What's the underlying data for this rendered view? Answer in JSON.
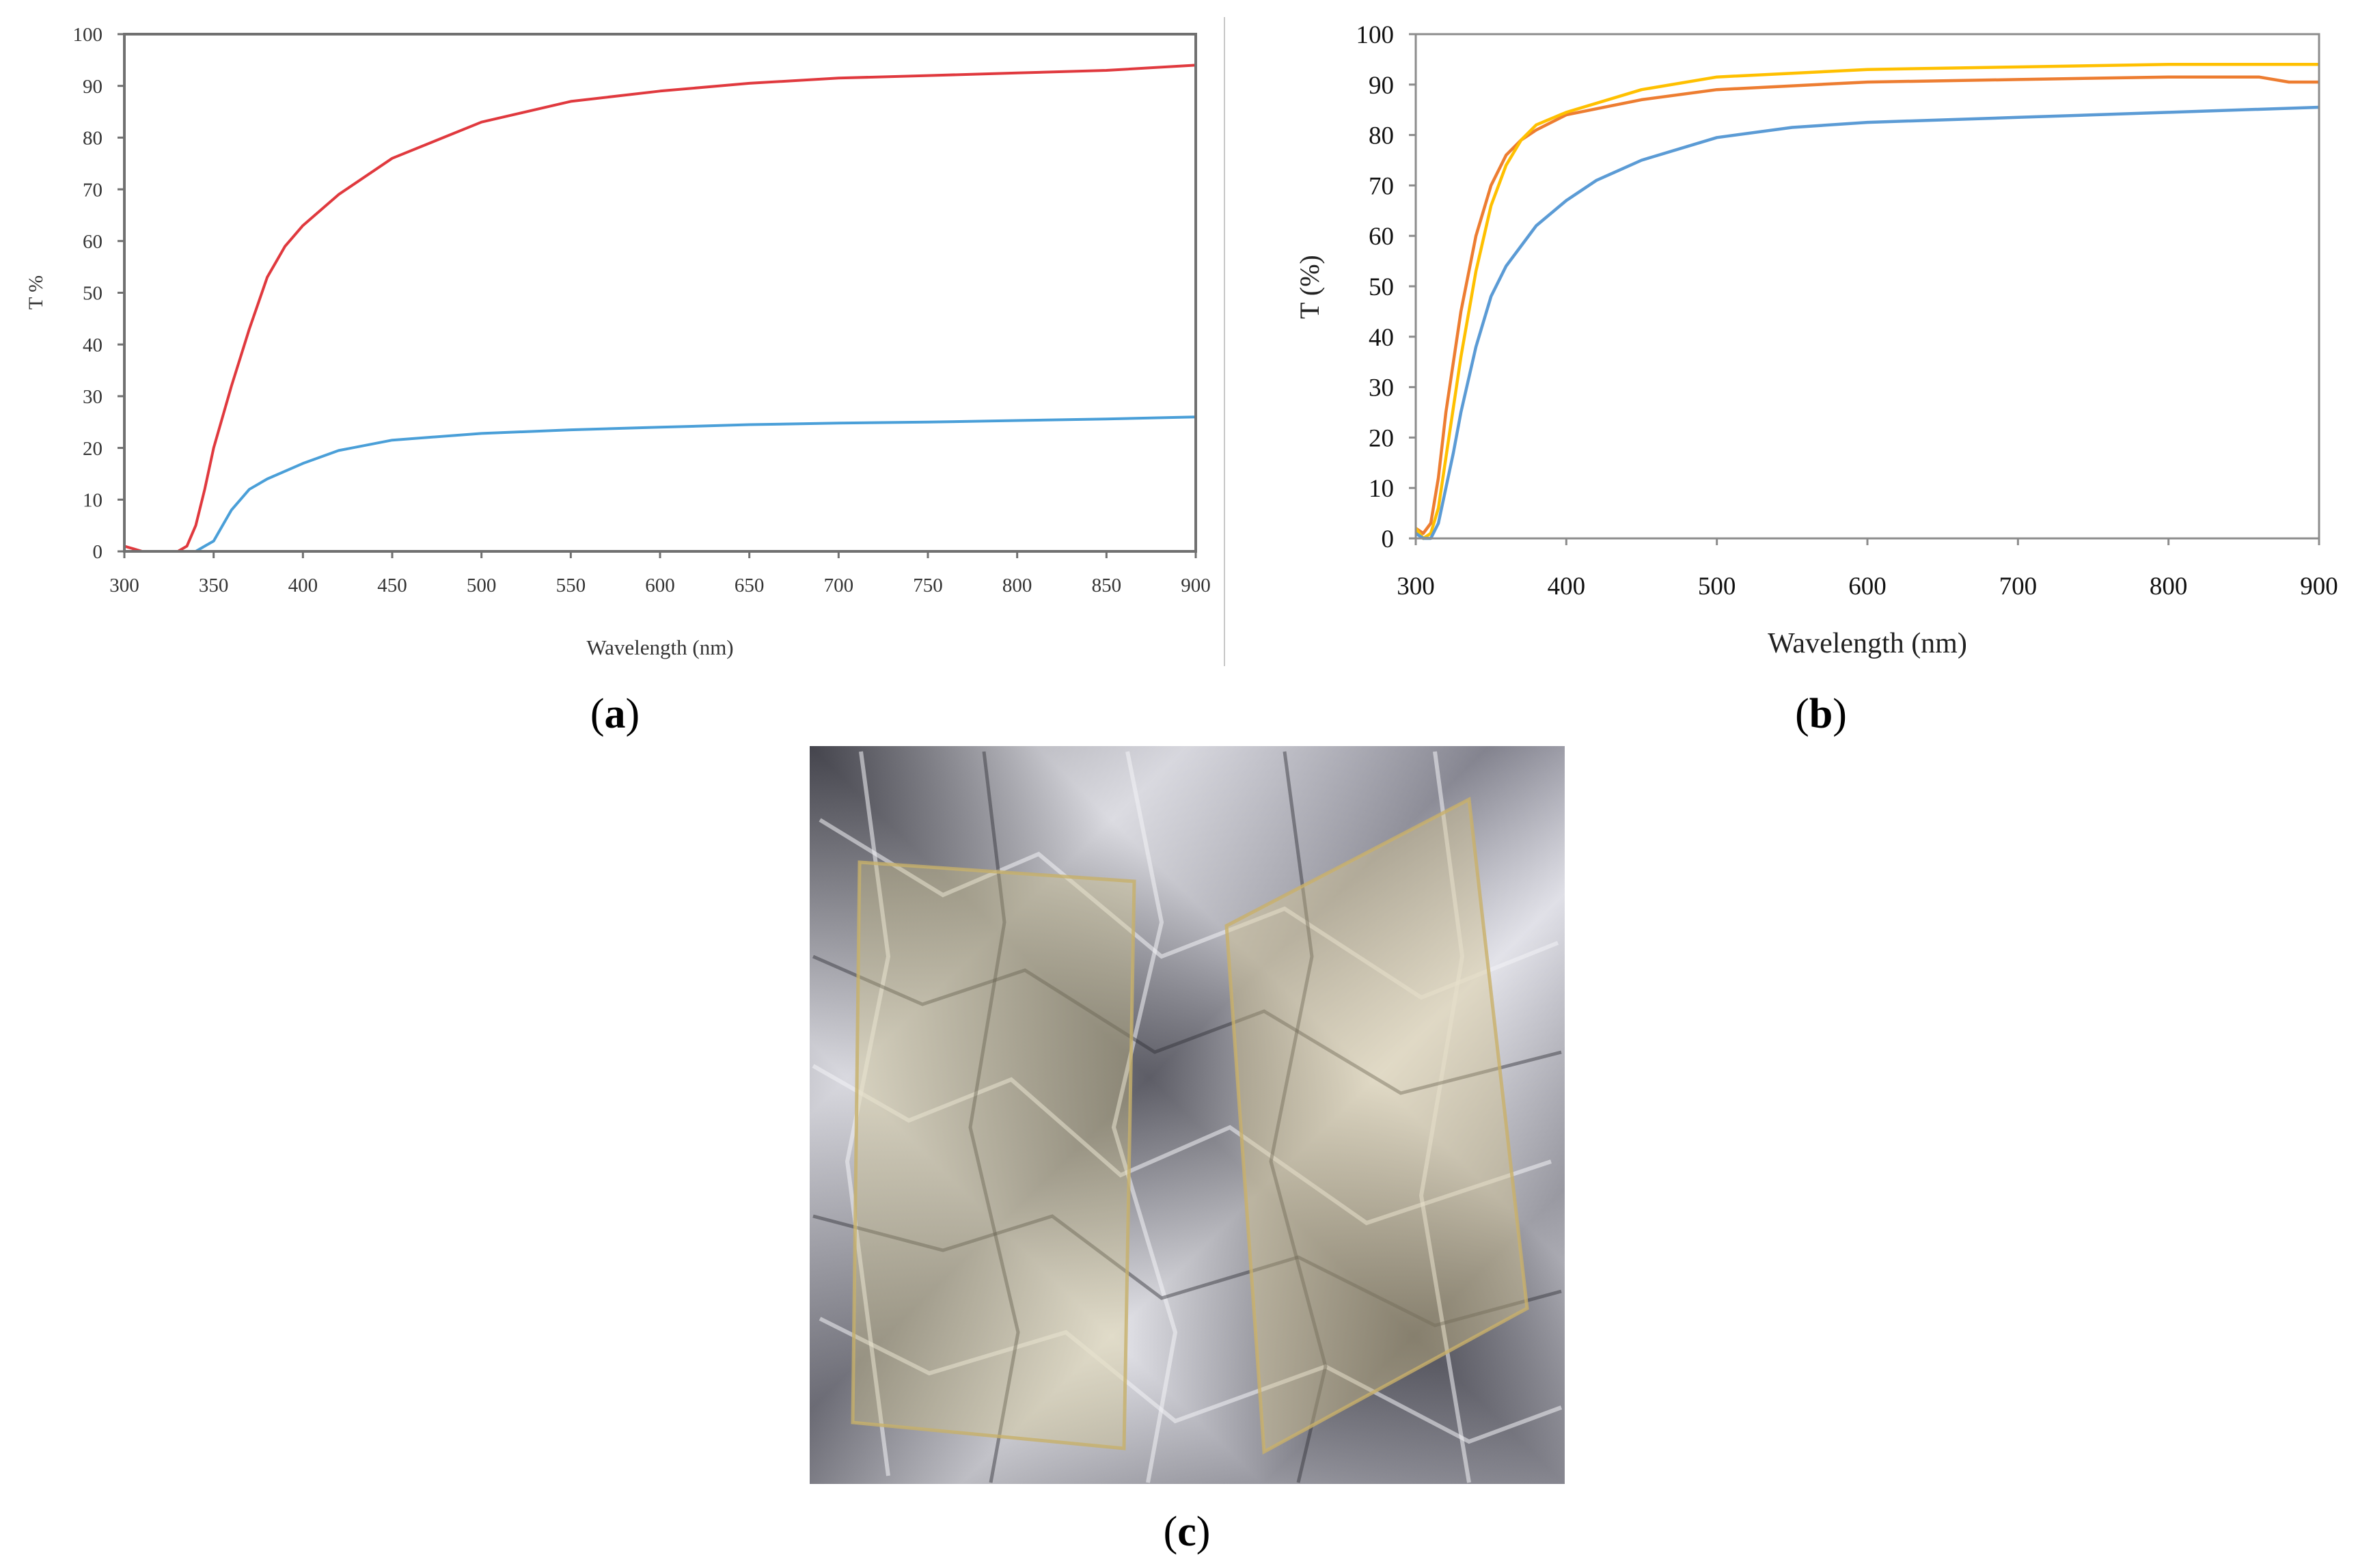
{
  "panels": {
    "a": {
      "label_open": "(",
      "label_letter": "a",
      "label_close": ")"
    },
    "b": {
      "label_open": "(",
      "label_letter": "b",
      "label_close": ")"
    },
    "c": {
      "label_open": "(",
      "label_letter": "c",
      "label_close": ")"
    }
  },
  "chart_data": [
    {
      "id": "a",
      "type": "line",
      "xlabel": "Wavelength (nm)",
      "ylabel": "T %",
      "xlim": [
        300,
        900
      ],
      "ylim": [
        0,
        100
      ],
      "xticks": [
        300,
        350,
        400,
        450,
        500,
        550,
        600,
        650,
        700,
        750,
        800,
        850,
        900
      ],
      "yticks": [
        0,
        10,
        20,
        30,
        40,
        50,
        60,
        70,
        80,
        90,
        100
      ],
      "grid": false,
      "series": [
        {
          "color": "#e0393e",
          "x": [
            300,
            305,
            310,
            320,
            330,
            335,
            340,
            345,
            350,
            360,
            370,
            380,
            390,
            400,
            420,
            450,
            500,
            550,
            600,
            650,
            700,
            750,
            800,
            850,
            900
          ],
          "y": [
            1,
            0.5,
            0,
            0,
            0,
            1,
            5,
            12,
            20,
            32,
            43,
            53,
            59,
            63,
            69,
            76,
            83,
            87,
            89,
            90.5,
            91.5,
            92,
            92.5,
            93,
            94
          ]
        },
        {
          "color": "#4a9fd8",
          "x": [
            300,
            330,
            340,
            345,
            350,
            355,
            360,
            370,
            380,
            400,
            420,
            450,
            500,
            550,
            600,
            650,
            700,
            750,
            800,
            850,
            900
          ],
          "y": [
            0,
            0,
            0,
            1,
            2,
            5,
            8,
            12,
            14,
            17,
            19.5,
            21.5,
            22.8,
            23.5,
            24,
            24.5,
            24.8,
            25,
            25.3,
            25.6,
            26
          ]
        }
      ]
    },
    {
      "id": "b",
      "type": "line",
      "xlabel": "Wavelength (nm)",
      "ylabel": "T (%)",
      "xlim": [
        300,
        900
      ],
      "ylim": [
        0,
        100
      ],
      "xticks": [
        300,
        400,
        500,
        600,
        700,
        800,
        900
      ],
      "yticks": [
        0,
        10,
        20,
        30,
        40,
        50,
        60,
        70,
        80,
        90,
        100
      ],
      "grid": false,
      "series": [
        {
          "color": "#ed7d31",
          "x": [
            300,
            305,
            310,
            315,
            320,
            330,
            340,
            350,
            360,
            370,
            380,
            400,
            450,
            500,
            600,
            700,
            800,
            860,
            880,
            900
          ],
          "y": [
            2,
            1,
            3,
            12,
            25,
            45,
            60,
            70,
            76,
            79,
            81,
            84,
            87,
            89,
            90.5,
            91,
            91.5,
            91.5,
            90.5,
            90.5
          ]
        },
        {
          "color": "#ffc000",
          "x": [
            300,
            305,
            310,
            315,
            320,
            330,
            340,
            350,
            360,
            370,
            380,
            400,
            450,
            500,
            600,
            700,
            800,
            900
          ],
          "y": [
            2,
            0,
            1,
            6,
            16,
            36,
            53,
            66,
            74,
            79,
            82,
            84.5,
            89,
            91.5,
            93,
            93.5,
            94,
            94
          ]
        },
        {
          "color": "#5b9bd5",
          "x": [
            300,
            305,
            310,
            315,
            320,
            325,
            330,
            340,
            350,
            360,
            370,
            380,
            400,
            420,
            450,
            500,
            550,
            600,
            700,
            800,
            900
          ],
          "y": [
            1,
            0,
            0,
            3,
            10,
            17,
            25,
            38,
            48,
            54,
            58,
            62,
            67,
            71,
            75,
            79.5,
            81.5,
            82.5,
            83.5,
            84.5,
            85.5
          ]
        }
      ]
    }
  ]
}
